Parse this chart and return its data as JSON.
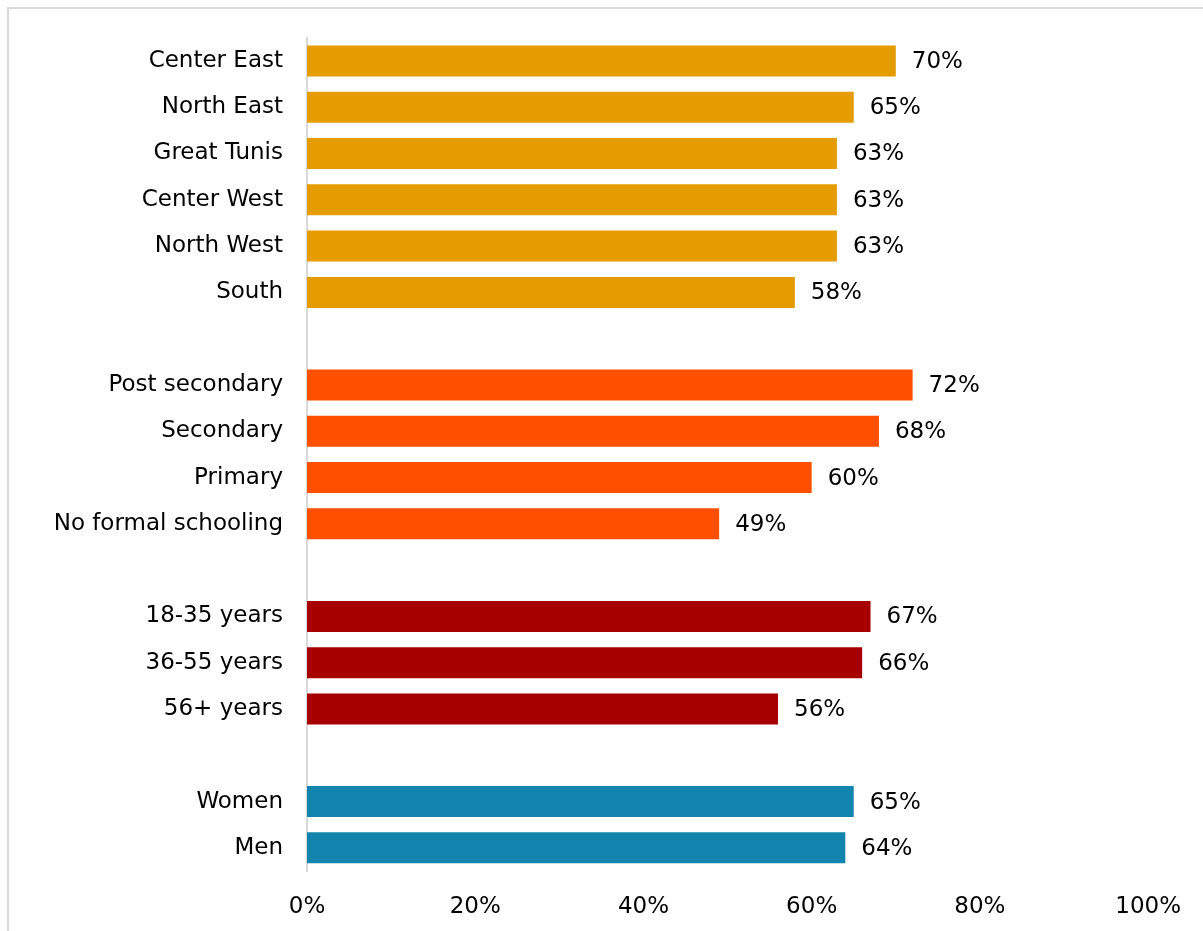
{
  "chart_data": {
    "type": "bar",
    "orientation": "horizontal",
    "categories": [
      "Center East",
      "North East",
      "Great Tunis",
      "Center West",
      "North West",
      "South",
      null,
      "Post secondary",
      "Secondary",
      "Primary",
      "No formal schooling",
      null,
      "18-35 years",
      "36-55 years",
      "56+ years",
      null,
      "Women",
      "Men"
    ],
    "values": [
      70,
      65,
      63,
      63,
      63,
      58,
      null,
      72,
      68,
      60,
      49,
      null,
      67,
      66,
      56,
      null,
      65,
      64
    ],
    "value_labels": [
      "70%",
      "65%",
      "63%",
      "63%",
      "63%",
      "58%",
      null,
      "72%",
      "68%",
      "60%",
      "49%",
      null,
      "67%",
      "66%",
      "56%",
      null,
      "65%",
      "64%"
    ],
    "colors": [
      "#e59c00",
      "#e59c00",
      "#e59c00",
      "#e59c00",
      "#e59c00",
      "#e59c00",
      null,
      "#ff5000",
      "#ff5000",
      "#ff5000",
      "#ff5000",
      null,
      "#a60000",
      "#a60000",
      "#a60000",
      null,
      "#1284ad",
      "#1284ad"
    ],
    "xlim": [
      0,
      100
    ],
    "xticks": [
      {
        "value": 0,
        "label": "0%"
      },
      {
        "value": 20,
        "label": "20%"
      },
      {
        "value": 40,
        "label": "40%"
      },
      {
        "value": 60,
        "label": "60%"
      },
      {
        "value": 80,
        "label": "80%"
      },
      {
        "value": 100,
        "label": "100%"
      }
    ],
    "grid": false,
    "legend": false
  }
}
